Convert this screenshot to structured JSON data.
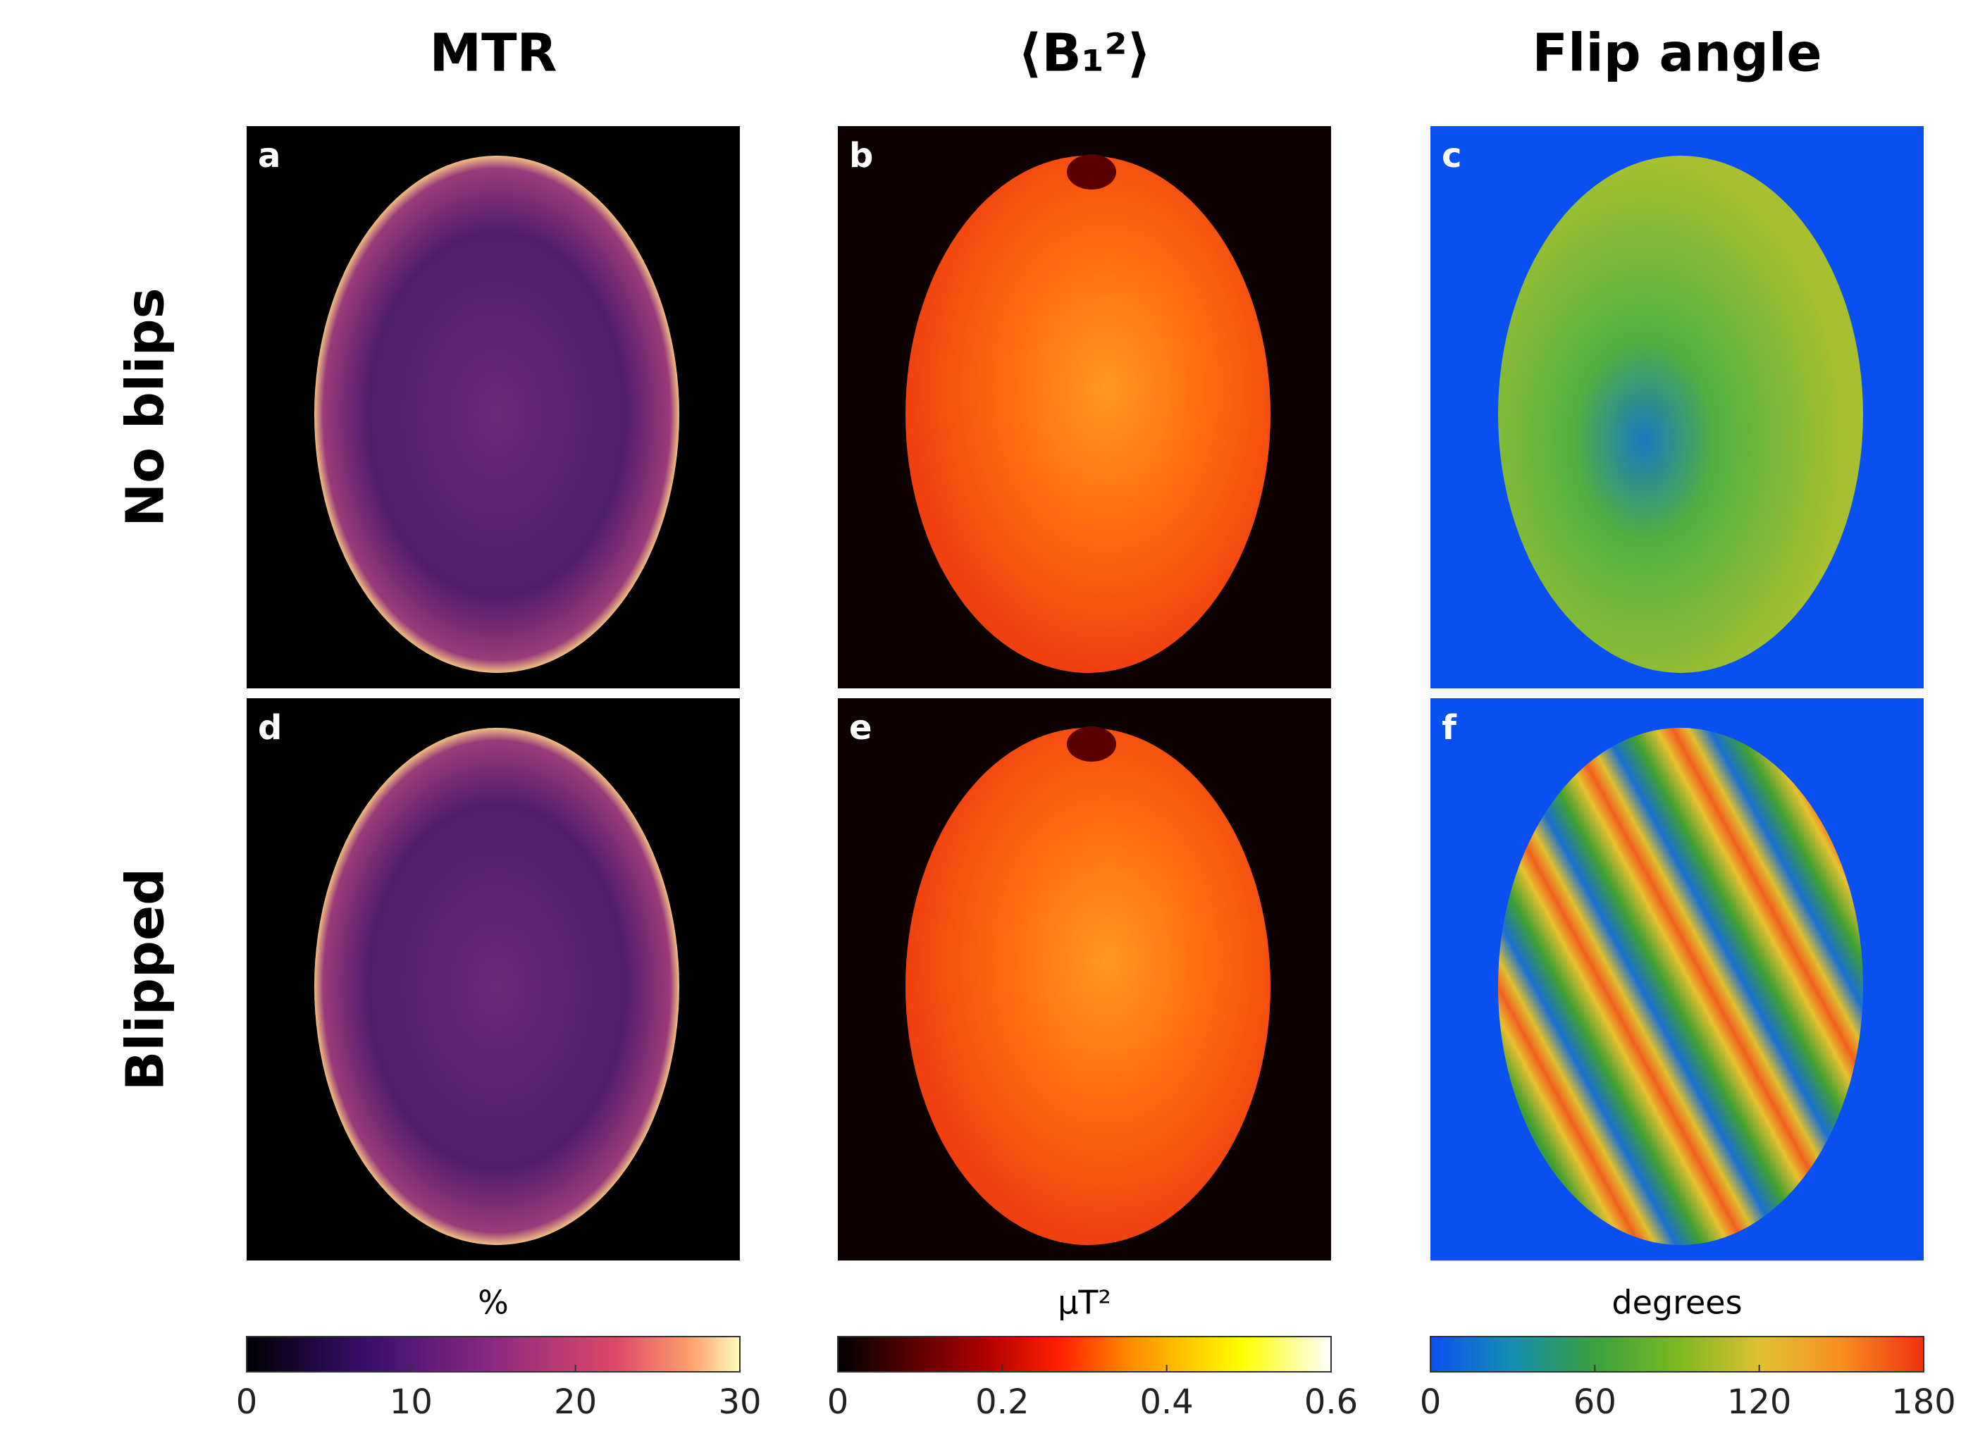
{
  "columns": [
    {
      "title": "MTR",
      "colorbar": {
        "label": "%",
        "lim": [
          0,
          30
        ],
        "ticks": [
          0,
          10,
          20,
          30
        ]
      }
    },
    {
      "title": "⟨B₁²⟩",
      "colorbar": {
        "label": "μT²",
        "lim": [
          0,
          0.6
        ],
        "ticks": [
          0,
          0.2,
          0.4,
          0.6
        ]
      }
    },
    {
      "title": "Flip angle",
      "colorbar": {
        "label": "degrees",
        "lim": [
          0,
          180
        ],
        "ticks": [
          0,
          60,
          120,
          180
        ]
      }
    }
  ],
  "rows": [
    "No blips",
    "Blipped"
  ],
  "panels": [
    "a",
    "b",
    "c",
    "d",
    "e",
    "f"
  ]
}
